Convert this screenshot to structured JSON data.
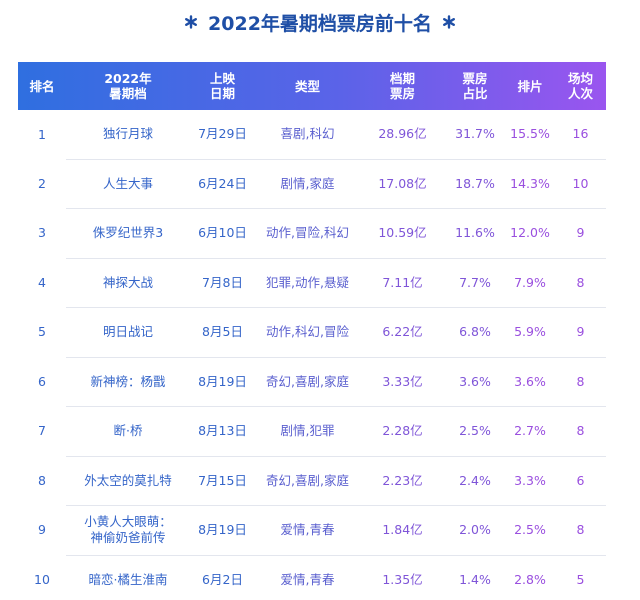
{
  "title": "2022年暑期档票房前十名",
  "table": {
    "header": [
      "排名",
      [
        "2022年",
        "暑期档"
      ],
      [
        "上映",
        "日期"
      ],
      "类型",
      [
        "档期",
        "票房"
      ],
      [
        "票房",
        "占比"
      ],
      "排片",
      [
        "场均",
        "人次"
      ]
    ],
    "rows": [
      [
        "1",
        "独行月球",
        "7月29日",
        "喜剧,科幻",
        "28.96亿",
        "31.7%",
        "15.5%",
        "16"
      ],
      [
        "2",
        "人生大事",
        "6月24日",
        "剧情,家庭",
        "17.08亿",
        "18.7%",
        "14.3%",
        "10"
      ],
      [
        "3",
        "侏罗纪世界3",
        "6月10日",
        "动作,冒险,科幻",
        "10.59亿",
        "11.6%",
        "12.0%",
        "9"
      ],
      [
        "4",
        "神探大战",
        "7月8日",
        "犯罪,动作,悬疑",
        "7.11亿",
        "7.7%",
        "7.9%",
        "8"
      ],
      [
        "5",
        "明日战记",
        "8月5日",
        "动作,科幻,冒险",
        "6.22亿",
        "6.8%",
        "5.9%",
        "9"
      ],
      [
        "6",
        "新神榜：杨戬",
        "8月19日",
        "奇幻,喜剧,家庭",
        "3.33亿",
        "3.6%",
        "3.6%",
        "8"
      ],
      [
        "7",
        "断·桥",
        "8月13日",
        "剧情,犯罪",
        "2.28亿",
        "2.5%",
        "2.7%",
        "8"
      ],
      [
        "8",
        "外太空的莫扎特",
        "7月15日",
        "奇幻,喜剧,家庭",
        "2.23亿",
        "2.4%",
        "3.3%",
        "6"
      ],
      [
        "9",
        [
          "小黄人大眼萌：",
          "神偷奶爸前传"
        ],
        "8月19日",
        "爱情,青春",
        "1.84亿",
        "2.0%",
        "2.5%",
        "8"
      ],
      [
        "10",
        "暗恋·橘生淮南",
        "6月2日",
        "爱情,青春",
        "1.35亿",
        "1.4%",
        "2.8%",
        "5"
      ]
    ]
  }
}
